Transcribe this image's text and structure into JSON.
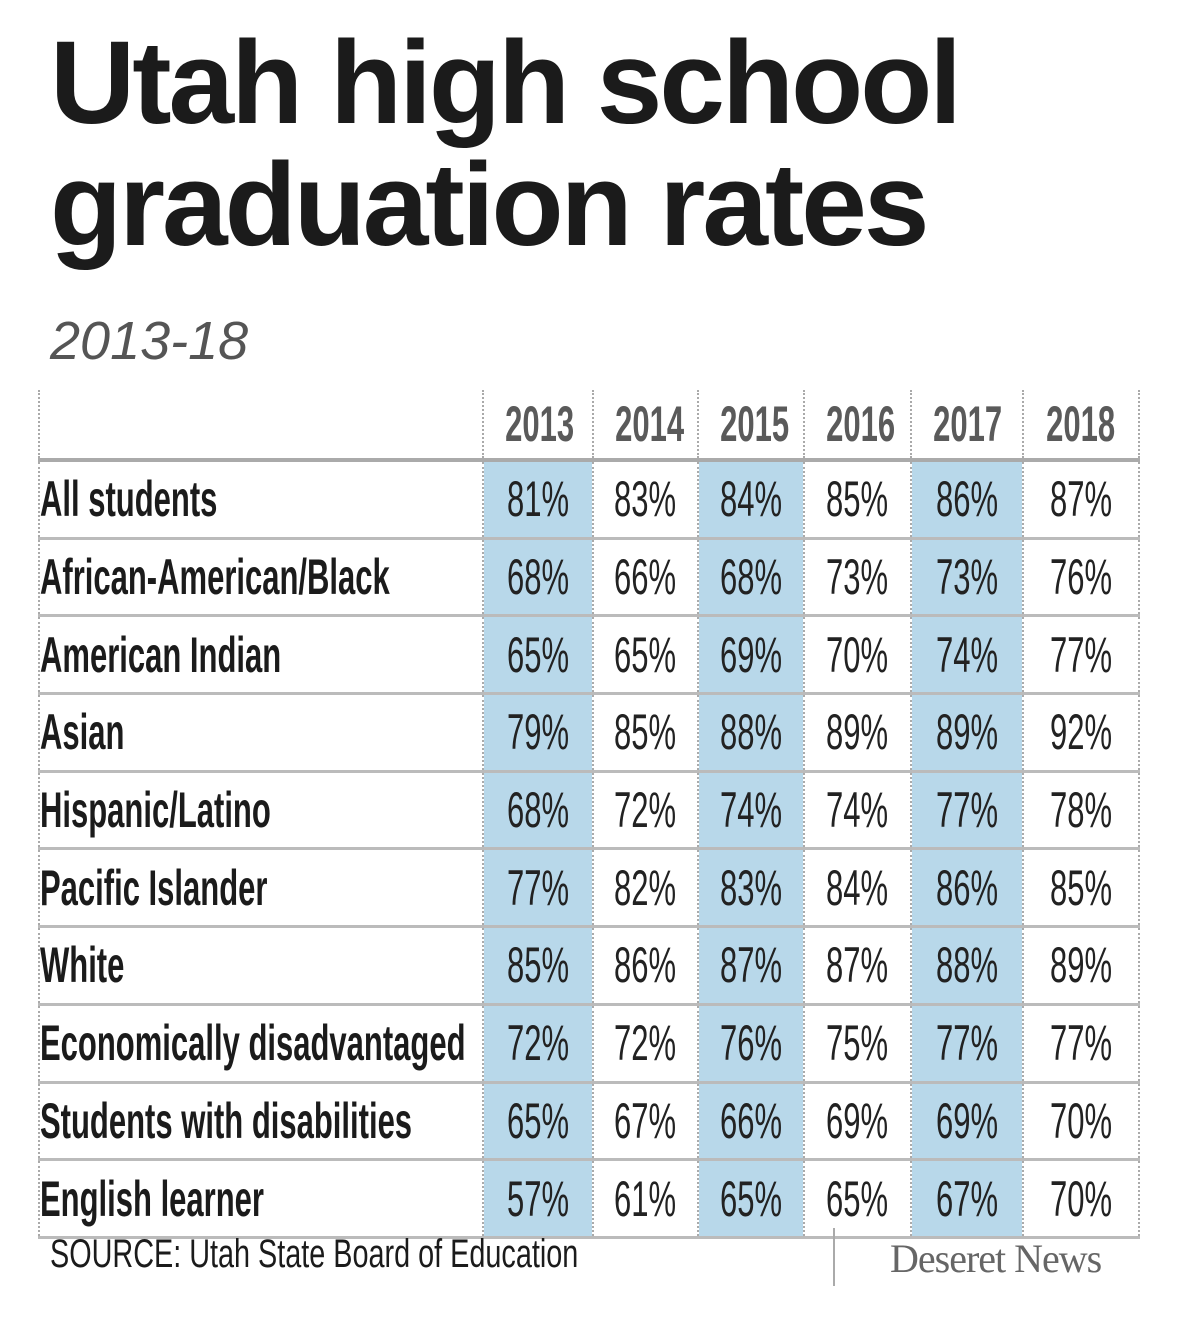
{
  "header": {
    "title_line1": "Utah high school",
    "title_line2": "graduation rates",
    "subtitle": "2013-18"
  },
  "chart_data": {
    "type": "table",
    "title": "Utah high school graduation rates",
    "subtitle": "2013-18",
    "columns": [
      "2013",
      "2014",
      "2015",
      "2016",
      "2017",
      "2018"
    ],
    "highlight_color": "#b8d8ea",
    "highlighted_columns": [
      "2013",
      "2015",
      "2017"
    ],
    "rows": [
      {
        "label": "All students",
        "values": [
          "81%",
          "83%",
          "84%",
          "85%",
          "86%",
          "87%"
        ]
      },
      {
        "label": "African-American/Black",
        "values": [
          "68%",
          "66%",
          "68%",
          "73%",
          "73%",
          "76%"
        ]
      },
      {
        "label": "American Indian",
        "values": [
          "65%",
          "65%",
          "69%",
          "70%",
          "74%",
          "77%"
        ]
      },
      {
        "label": "Asian",
        "values": [
          "79%",
          "85%",
          "88%",
          "89%",
          "89%",
          "92%"
        ]
      },
      {
        "label": "Hispanic/Latino",
        "values": [
          "68%",
          "72%",
          "74%",
          "74%",
          "77%",
          "78%"
        ]
      },
      {
        "label": "Pacific Islander",
        "values": [
          "77%",
          "82%",
          "83%",
          "84%",
          "86%",
          "85%"
        ]
      },
      {
        "label": "White",
        "values": [
          "85%",
          "86%",
          "87%",
          "87%",
          "88%",
          "89%"
        ]
      },
      {
        "label": "Economically disadvantaged",
        "values": [
          "72%",
          "72%",
          "76%",
          "75%",
          "77%",
          "77%"
        ]
      },
      {
        "label": "Students with disabilities",
        "values": [
          "65%",
          "67%",
          "66%",
          "69%",
          "69%",
          "70%"
        ]
      },
      {
        "label": "English learner",
        "values": [
          "57%",
          "61%",
          "65%",
          "65%",
          "67%",
          "70%"
        ]
      }
    ]
  },
  "footer": {
    "source": "SOURCE: Utah State Board of Education",
    "logo": "Deseret News"
  }
}
